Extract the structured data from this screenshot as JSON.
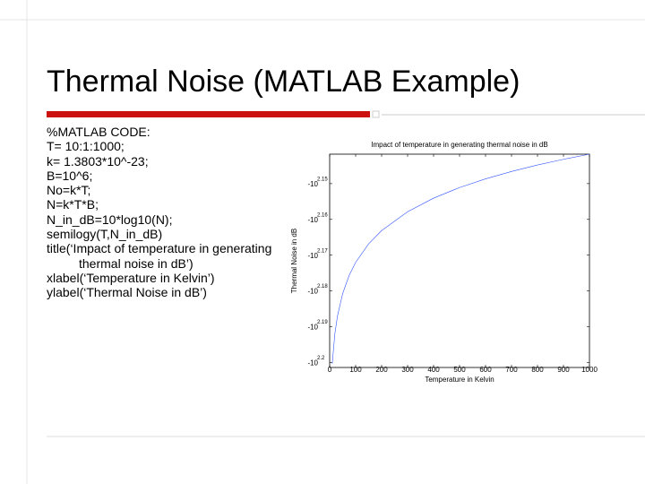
{
  "slide": {
    "title": "Thermal Noise (MATLAB Example)",
    "code": [
      "%MATLAB CODE:",
      "T= 10:1:1000;",
      "k= 1.3803*10^-23;",
      "B=10^6;",
      "No=k*T;",
      "N=k*T*B;",
      "N_in_dB=10*log10(N);",
      "semilogy(T,N_in_dB)",
      "title(‘Impact of temperature in generating thermal noise in dB’)",
      "xlabel(‘Temperature in Kelvin’)",
      "ylabel(‘Thermal Noise in dB’)"
    ]
  },
  "chart_data": {
    "type": "line",
    "title": "Impact of temperature in generating thermal noise in dB",
    "x_label": "Temperature in Kelvin",
    "y_label": "Thermal Noise in dB",
    "y_scale": "log-magnitude",
    "x": [
      10,
      20,
      30,
      50,
      75,
      100,
      150,
      200,
      300,
      400,
      500,
      600,
      700,
      800,
      900,
      1000
    ],
    "series": [
      {
        "name": "N_in_dB",
        "color": "#3355ff",
        "values": [
          -158.6,
          -155.59,
          -153.83,
          -151.61,
          -149.85,
          -148.6,
          -146.84,
          -145.59,
          -143.83,
          -142.58,
          -141.61,
          -140.82,
          -140.15,
          -139.57,
          -139.06,
          -138.6
        ]
      }
    ],
    "xlim": [
      0,
      1000
    ],
    "xticks": [
      0,
      100,
      200,
      300,
      400,
      500,
      600,
      700,
      800,
      900,
      1000
    ],
    "ylim": [
      -159,
      -138.6
    ],
    "yticks": [
      {
        "value": -141.254,
        "label": "-10",
        "exponent": "2.15"
      },
      {
        "value": -144.544,
        "label": "-10",
        "exponent": "2.16"
      },
      {
        "value": -147.911,
        "label": "-10",
        "exponent": "2.17"
      },
      {
        "value": -151.356,
        "label": "-10",
        "exponent": "2.18"
      },
      {
        "value": -154.882,
        "label": "-10",
        "exponent": "2.19"
      },
      {
        "value": -158.489,
        "label": "-10",
        "exponent": "2.2"
      }
    ],
    "grid": false
  }
}
